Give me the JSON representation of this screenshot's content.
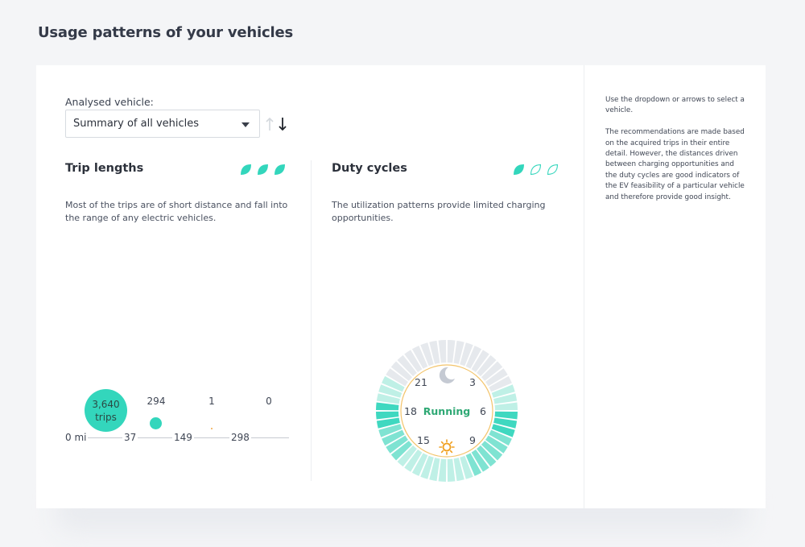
{
  "page": {
    "title": "Usage patterns of your vehicles"
  },
  "vehicle_selector": {
    "label": "Analysed vehicle:",
    "value": "Summary of all vehicles",
    "prev_icon": "arrow-up-icon",
    "next_icon": "arrow-down-icon"
  },
  "trip_lengths": {
    "title": "Trip lengths",
    "rating": {
      "filled": 3,
      "total": 3,
      "icon": "leaf-icon"
    },
    "description": "Most of the trips are of short distance and fall into the range of any electric vehicles.",
    "counts": [
      {
        "value": "3,640",
        "unit": "trips"
      },
      {
        "value": "294"
      },
      {
        "value": "1"
      },
      {
        "value": "0"
      }
    ],
    "axis_labels": [
      "0 mi",
      "37",
      "149",
      "298"
    ]
  },
  "duty_cycles": {
    "title": "Duty cycles",
    "rating": {
      "filled": 1,
      "total": 3,
      "icon": "leaf-icon"
    },
    "description": "The utilization patterns provide limited charging opportunities.",
    "clock": {
      "center_label": "Running",
      "hour_labels": [
        "21",
        "3",
        "18",
        "6",
        "15",
        "9"
      ],
      "night_icon": "moon-icon",
      "day_icon": "sun-icon"
    }
  },
  "help": {
    "paragraphs": [
      "Use the dropdown or arrows to select a vehicle.",
      "The recommendations are made based on the acquired trips in their entire detail. However, the distances driven between charging opportunities and the duty cycles are good indicators of the EV feasibility of a particular vehicle and therefore provide good insight."
    ]
  },
  "colors": {
    "accent": "#33d6bc",
    "running_text": "#2ea874",
    "sun": "#f0a020",
    "moon": "#c5cad3"
  }
}
